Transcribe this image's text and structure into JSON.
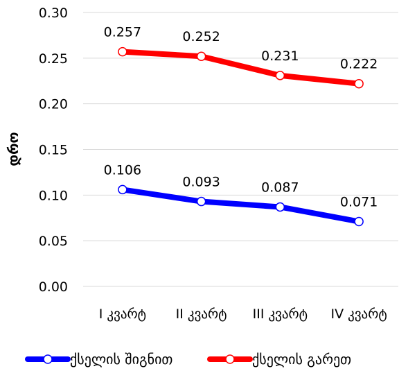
{
  "chart_data": {
    "type": "line",
    "title": "",
    "xlabel": "",
    "ylabel": "დრო",
    "ylim": [
      0,
      0.3
    ],
    "yticks": [
      "0.30",
      "0.25",
      "0.20",
      "0.15",
      "0.10",
      "0.05",
      "0.00"
    ],
    "categories": [
      "I კვარტ",
      "II კვარტ",
      "III კვარტ",
      "IV კვარტ"
    ],
    "grid": true,
    "legend_position": "bottom",
    "series": [
      {
        "name": "ქსელის შიგნით",
        "color": "#0000ff",
        "values": [
          0.106,
          0.093,
          0.087,
          0.071
        ],
        "labels": [
          "0.106",
          "0.093",
          "0.087",
          "0.071"
        ]
      },
      {
        "name": "ქსელის გარეთ",
        "color": "#ff0000",
        "values": [
          0.257,
          0.252,
          0.231,
          0.222
        ],
        "labels": [
          "0.257",
          "0.252",
          "0.231",
          "0.222"
        ]
      }
    ]
  }
}
